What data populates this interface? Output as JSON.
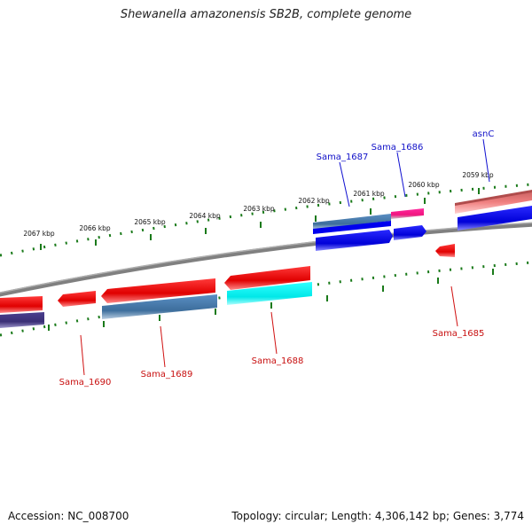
{
  "title": "Shewanella amazonensis SB2B, complete genome",
  "footer": {
    "accession": "Accession: NC_008700",
    "summary": "Topology: circular; Length: 4,306,142 bp; Genes: 3,774"
  },
  "scale_labels": [
    "2067 kbp",
    "2066 kbp",
    "2065 kbp",
    "2064 kbp",
    "2063 kbp",
    "2062 kbp",
    "2061 kbp",
    "2060 kbp",
    "2059 kbp"
  ],
  "gene_labels": [
    "Sama_1687",
    "Sama_1686",
    "asnC",
    "Sama_1685",
    "Sama_1688",
    "Sama_1689",
    "Sama_1690"
  ],
  "colors": {
    "red": "#ff0000",
    "dark_red": "#c00000",
    "blue": "#0000ff",
    "steel_blue": "#4682b4",
    "cyan": "#00ffff",
    "magenta": "#ff1493",
    "indigo": "#483d8b",
    "salmon": "#f08080",
    "backbone": "#808080",
    "tick_green": "#1a7a1a"
  }
}
